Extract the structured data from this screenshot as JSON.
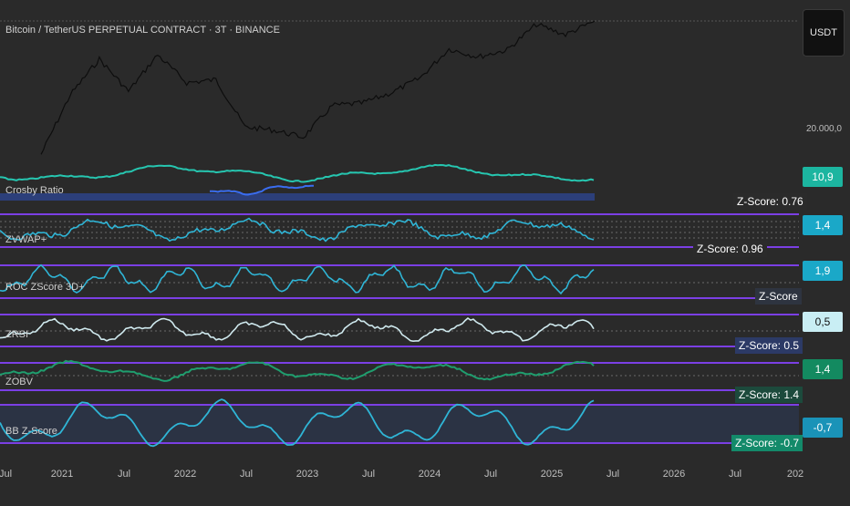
{
  "header": {
    "title": "Bitcoin / TetherUS PERPETUAL CONTRACT · 3T · BINANCE",
    "currency_button": "USDT"
  },
  "axes": {
    "price_tick": "20.000,0",
    "x_ticks": [
      "Jul",
      "2021",
      "Jul",
      "2022",
      "Jul",
      "2023",
      "Jul",
      "2024",
      "Jul",
      "2025",
      "Jul",
      "2026",
      "Jul",
      "202"
    ]
  },
  "colors": {
    "background": "#2a2a2a",
    "price": "#0d0d0d",
    "teal": "#26c6b0",
    "cyan": "#2fb5d6",
    "purple": "#7b3fe4",
    "blue": "#3a6df0",
    "green": "#1f9e6e",
    "white_line": "#cfe9ee"
  },
  "indicators": [
    {
      "name": "Crosby Ratio",
      "zscore_label": "Z-Score: 0.76",
      "badge": "10,9",
      "badge_color": "#1cb5a0"
    },
    {
      "name": "ZVWAP+",
      "zscore_label": "Z-Score: 0.96",
      "badge": "1,4",
      "badge_color": "#1aa8c8"
    },
    {
      "name": "ROC ZScore 3D+",
      "zscore_label": "Z-Score",
      "badge": "1,9",
      "badge_color": "#1aa8c8"
    },
    {
      "name": "ZRSI",
      "zscore_label": "Z-Score: 0.5",
      "badge": "0,5",
      "badge_color": "#c9eef4"
    },
    {
      "name": "ZOBV",
      "zscore_label": "Z-Score: 1.4",
      "badge": "1,4",
      "badge_color": "#138a60"
    },
    {
      "name": "BB Z-Score",
      "zscore_label": "Z-Score: -0.7",
      "badge": "-0,7",
      "badge_color": "#1a93b8"
    }
  ],
  "chart_data": {
    "type": "line",
    "title": "Bitcoin / TetherUS PERPETUAL CONTRACT · 3T · BINANCE",
    "x": [
      "2020-10",
      "2021-01",
      "2021-04",
      "2021-07",
      "2021-10",
      "2022-01",
      "2022-04",
      "2022-07",
      "2022-10",
      "2023-01",
      "2023-04",
      "2023-07",
      "2023-10",
      "2024-01",
      "2024-04",
      "2024-07",
      "2024-10",
      "2025-01",
      "2025-04",
      "2025-06"
    ],
    "series": [
      {
        "values": [
          13000,
          33000,
          58000,
          35000,
          62000,
          40000,
          42000,
          20000,
          19000,
          17000,
          28000,
          29000,
          34000,
          43000,
          68000,
          60000,
          67000,
          100000,
          85000,
          105000
        ]
      }
    ],
    "log_scale": true,
    "grid": false
  }
}
